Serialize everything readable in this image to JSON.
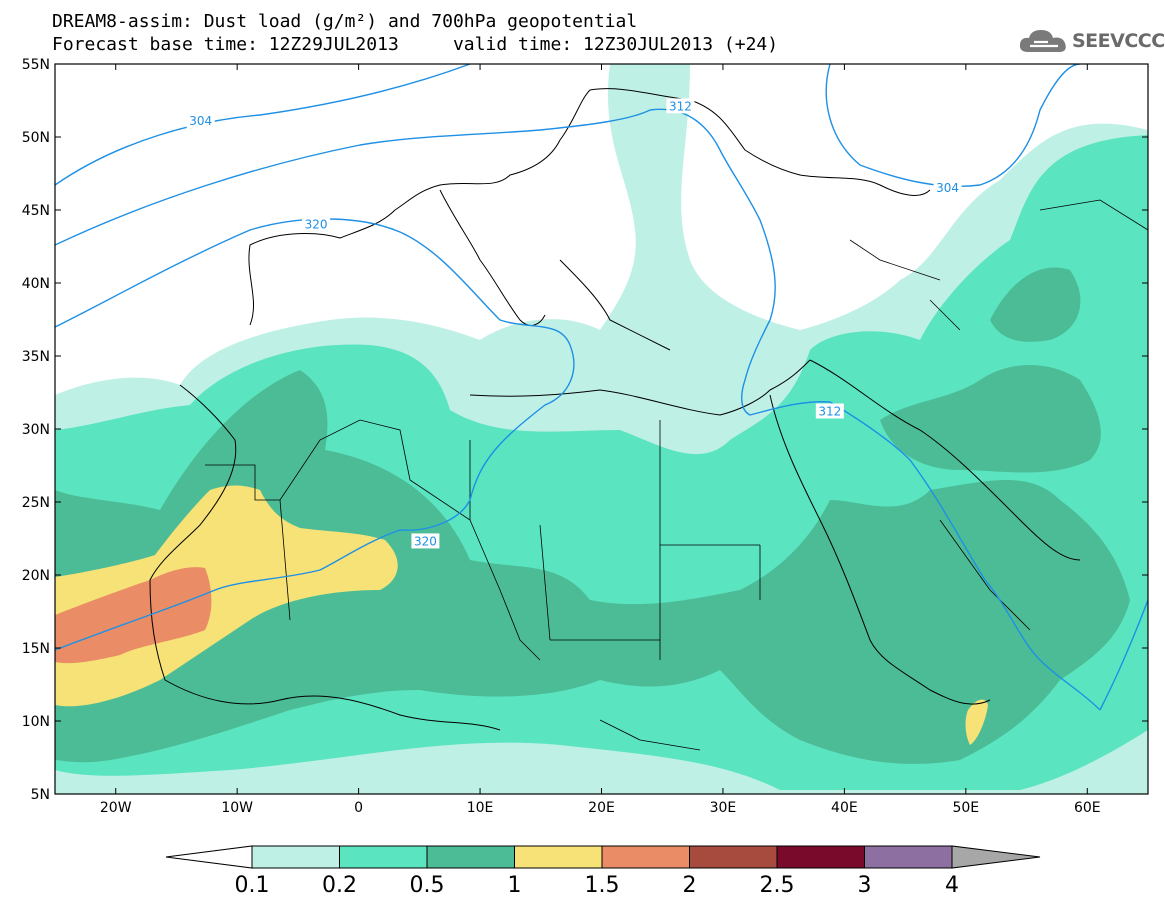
{
  "title": {
    "line1": "DREAM8-assim: Dust load (g/m²) and 700hPa geopotential",
    "line2": "Forecast base time: 12Z29JUL2013     valid time: 12Z30JUL2013 (+24)"
  },
  "logo": {
    "text": "SEEVCCC",
    "icon": "cloud-icon"
  },
  "map": {
    "lon_range": [
      -25,
      65
    ],
    "lat_range": [
      5,
      55
    ],
    "lat_ticks": [
      {
        "value": 55,
        "label": "55N"
      },
      {
        "value": 50,
        "label": "50N"
      },
      {
        "value": 45,
        "label": "45N"
      },
      {
        "value": 40,
        "label": "40N"
      },
      {
        "value": 35,
        "label": "35N"
      },
      {
        "value": 30,
        "label": "30N"
      },
      {
        "value": 25,
        "label": "25N"
      },
      {
        "value": 20,
        "label": "20N"
      },
      {
        "value": 15,
        "label": "15N"
      },
      {
        "value": 10,
        "label": "10N"
      },
      {
        "value": 5,
        "label": "5N"
      }
    ],
    "lon_ticks": [
      {
        "value": -20,
        "label": "20W"
      },
      {
        "value": -10,
        "label": "10W"
      },
      {
        "value": 0,
        "label": "0"
      },
      {
        "value": 10,
        "label": "10E"
      },
      {
        "value": 20,
        "label": "20E"
      },
      {
        "value": 30,
        "label": "30E"
      },
      {
        "value": 40,
        "label": "40E"
      },
      {
        "value": 50,
        "label": "50E"
      },
      {
        "value": 60,
        "label": "60E"
      }
    ],
    "contour_labels": [
      {
        "text": "304",
        "lon": -13,
        "lat": 51.1
      },
      {
        "text": "312",
        "lon": 26.5,
        "lat": 52.1
      },
      {
        "text": "320",
        "lon": -3.5,
        "lat": 44.0
      },
      {
        "text": "304",
        "lon": 48.5,
        "lat": 46.5
      },
      {
        "text": "312",
        "lon": 38.8,
        "lat": 31.2
      },
      {
        "text": "320",
        "lon": 5.5,
        "lat": 22.3
      }
    ],
    "colors": {
      "contour": "#1e90e6",
      "land_border": "#000000",
      "water": "#ffffff"
    }
  },
  "colorbar": {
    "levels": [
      "0.1",
      "0.2",
      "0.5",
      "1",
      "1.5",
      "2",
      "2.5",
      "3",
      "4"
    ],
    "colors": [
      "#ffffff",
      "#bff0e6",
      "#5be4c0",
      "#4cbc96",
      "#f6e276",
      "#ea8d66",
      "#a64b3e",
      "#7a0a2b",
      "#8e6fa1",
      "#a7a7a7"
    ]
  }
}
